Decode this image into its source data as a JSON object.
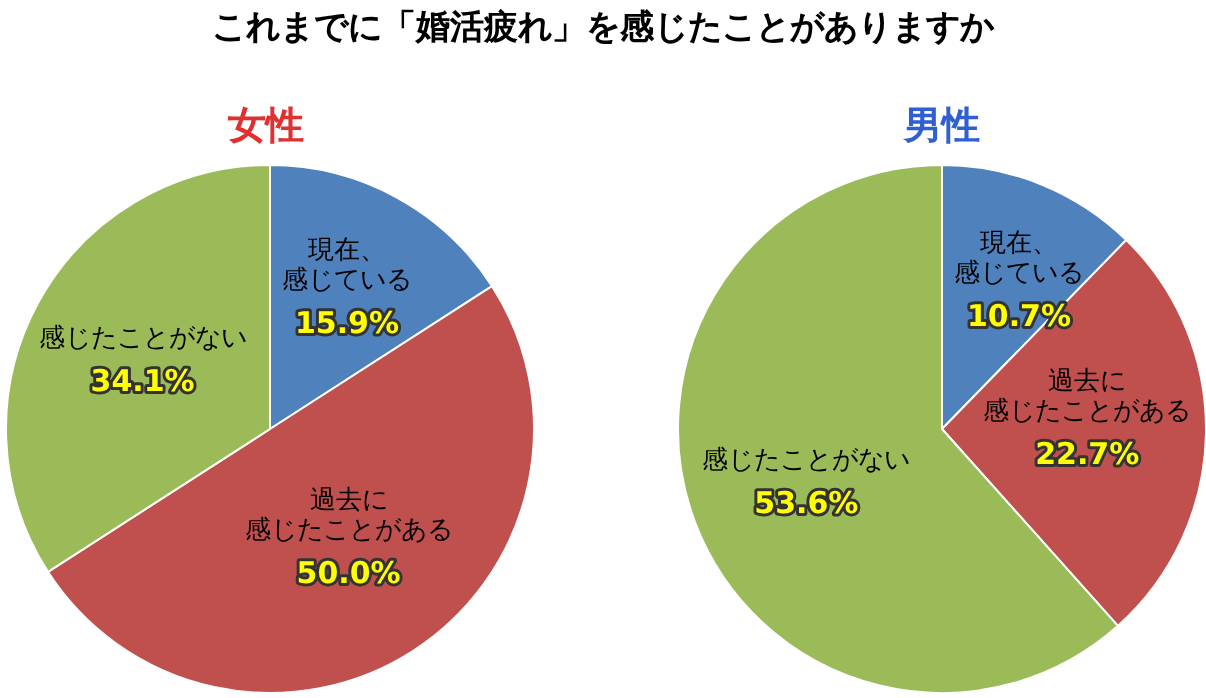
{
  "chart_data": [
    {
      "type": "pie",
      "title": "これまでに「婚活疲れ」を感じたことがありますか",
      "subtitle": "女性",
      "categories": [
        "現在、感じている",
        "過去に感じたことがある",
        "感じたことがない"
      ],
      "values": [
        15.9,
        50.0,
        34.1
      ],
      "value_labels": [
        "15.9%",
        "50.0%",
        "34.1%"
      ],
      "colors": [
        "#4f81bd",
        "#c0504d",
        "#9bbb59"
      ]
    },
    {
      "type": "pie",
      "title": "男性",
      "categories": [
        "現在、感じている",
        "過去に感じたことがある",
        "感じたことがない"
      ],
      "values": [
        10.7,
        22.7,
        53.6
      ],
      "value_labels": [
        "10.7%",
        "22.7%",
        "53.6%"
      ],
      "colors": [
        "#4f81bd",
        "#c0504d",
        "#9bbb59"
      ]
    }
  ]
}
